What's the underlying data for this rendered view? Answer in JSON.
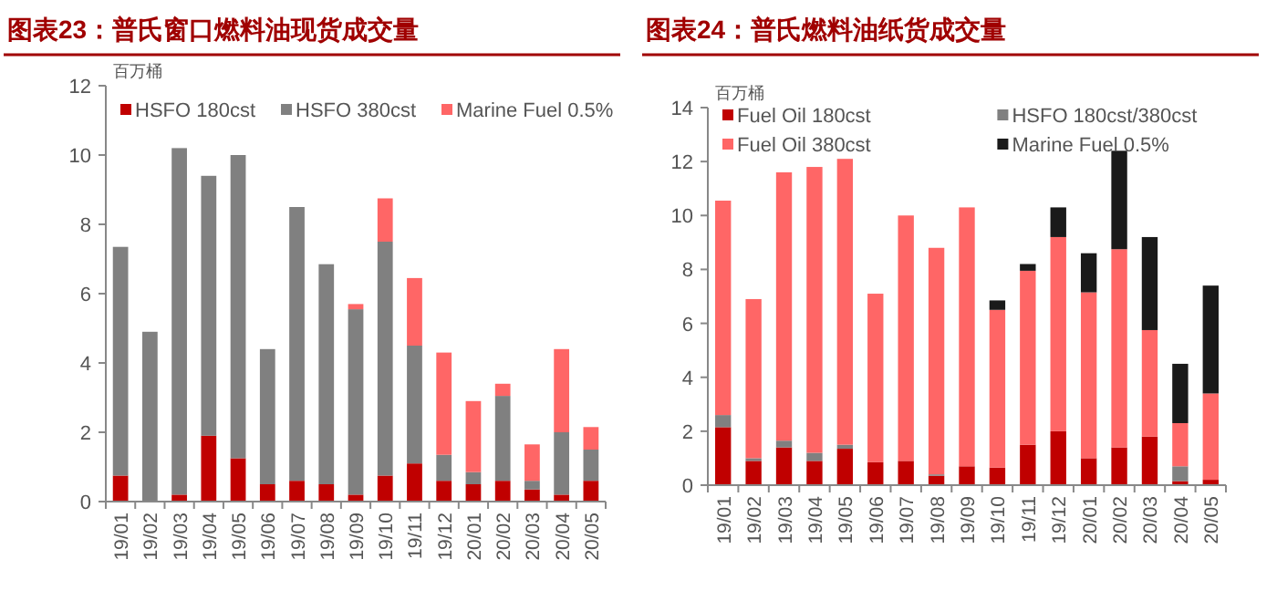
{
  "chart_data": [
    {
      "type": "bar",
      "stacked": true,
      "title": "图表23：普氏窗口燃料油现货成交量",
      "ylabel": "百万桶",
      "categories": [
        "19/01",
        "19/02",
        "19/03",
        "19/04",
        "19/05",
        "19/06",
        "19/07",
        "19/08",
        "19/09",
        "19/10",
        "19/11",
        "19/12",
        "20/01",
        "20/02",
        "20/03",
        "20/04",
        "20/05"
      ],
      "ylim": [
        0,
        12
      ],
      "yticks": [
        0,
        2,
        4,
        6,
        8,
        10,
        12
      ],
      "grid": false,
      "legend": "top",
      "series": [
        {
          "name": "HSFO 180cst",
          "color": "#c00000",
          "values": [
            0.75,
            0,
            0.2,
            1.9,
            1.25,
            0.5,
            0.6,
            0.5,
            0.2,
            0.75,
            1.1,
            0.6,
            0.5,
            0.6,
            0.35,
            0.2,
            0.6
          ]
        },
        {
          "name": "HSFO 380cst",
          "color": "#808080",
          "values": [
            6.6,
            4.9,
            10.0,
            7.5,
            8.75,
            3.9,
            7.9,
            6.35,
            5.35,
            6.75,
            3.4,
            0.75,
            0.35,
            2.45,
            0.25,
            1.8,
            0.9
          ]
        },
        {
          "name": "Marine Fuel 0.5%",
          "color": "#ff6666",
          "values": [
            0,
            0,
            0,
            0,
            0,
            0,
            0,
            0,
            0.15,
            1.25,
            1.95,
            2.95,
            2.05,
            0.35,
            1.05,
            2.4,
            0.65
          ]
        }
      ]
    },
    {
      "type": "bar",
      "stacked": true,
      "title": "图表24：普氏燃料油纸货成交量",
      "ylabel": "百万桶",
      "categories": [
        "19/01",
        "19/02",
        "19/03",
        "19/04",
        "19/05",
        "19/06",
        "19/07",
        "19/08",
        "19/09",
        "19/10",
        "19/11",
        "19/12",
        "20/01",
        "20/02",
        "20/03",
        "20/04",
        "20/05"
      ],
      "ylim": [
        0,
        14
      ],
      "yticks": [
        0,
        2,
        4,
        6,
        8,
        10,
        12,
        14
      ],
      "grid": false,
      "legend": "top",
      "series": [
        {
          "name": "Fuel Oil 180cst",
          "color": "#c00000",
          "values": [
            2.15,
            0.9,
            1.4,
            0.9,
            1.35,
            0.85,
            0.9,
            0.35,
            0.7,
            0.65,
            1.5,
            2.0,
            1.0,
            1.4,
            1.8,
            0.15,
            0.2
          ]
        },
        {
          "name": "HSFO 180cst/380cst",
          "color": "#808080",
          "values": [
            0.45,
            0.1,
            0.25,
            0.3,
            0.15,
            0,
            0,
            0.05,
            0,
            0,
            0,
            0,
            0,
            0,
            0,
            0.55,
            0
          ]
        },
        {
          "name": "Fuel Oil 380cst",
          "color": "#ff6666",
          "values": [
            7.95,
            5.9,
            9.95,
            10.6,
            10.6,
            6.25,
            9.1,
            8.4,
            9.6,
            5.85,
            6.45,
            7.2,
            6.15,
            7.35,
            3.95,
            1.6,
            3.2
          ]
        },
        {
          "name": "Marine Fuel 0.5%",
          "color": "#1a1a1a",
          "values": [
            0,
            0,
            0,
            0,
            0,
            0,
            0,
            0,
            0,
            0.35,
            0.25,
            1.1,
            1.45,
            3.65,
            3.45,
            2.2,
            4.0
          ]
        }
      ]
    }
  ]
}
